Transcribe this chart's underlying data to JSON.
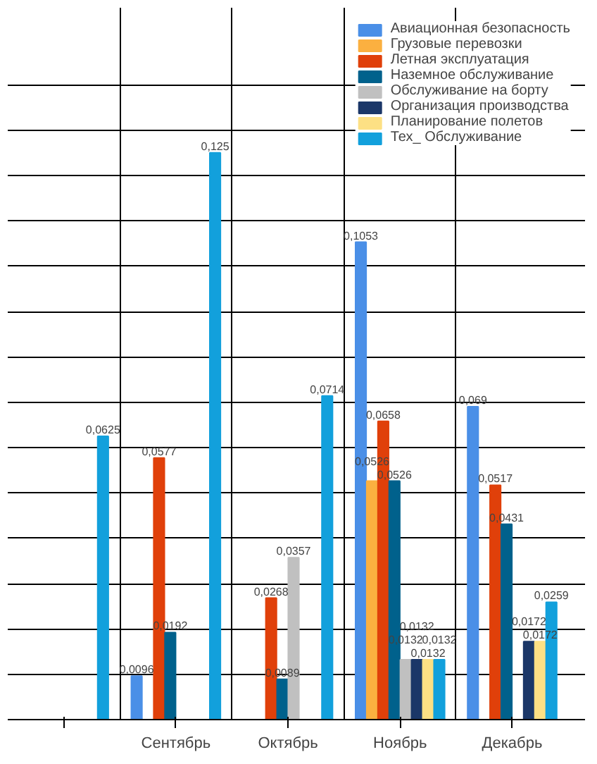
{
  "chart_data": {
    "type": "bar",
    "categories": [
      null,
      "Сентябрь",
      "Октябрь",
      "Ноябрь",
      "Декабрь"
    ],
    "series": [
      {
        "name": "Авиационная безопасность",
        "color": "#4a8fe7",
        "values": [
          null,
          0.0096,
          null,
          0.1053,
          0.069
        ],
        "value_labels": [
          null,
          "0,0096",
          null,
          "0,1053",
          "0,069"
        ]
      },
      {
        "name": "Грузовые перевозки",
        "color": "#fbb040",
        "values": [
          null,
          null,
          null,
          0.0526,
          null
        ],
        "value_labels": [
          null,
          null,
          null,
          "0,0526",
          null
        ]
      },
      {
        "name": "Летная эксплуатация",
        "color": "#e0400a",
        "values": [
          null,
          0.0577,
          0.0268,
          0.0658,
          0.0517
        ],
        "value_labels": [
          null,
          "0,0577",
          "0,0268",
          "0,0658",
          "0,0517"
        ]
      },
      {
        "name": "Наземное обслуживание",
        "color": "#00618c",
        "values": [
          null,
          0.0192,
          0.0089,
          0.0526,
          0.0431
        ],
        "value_labels": [
          null,
          "0,0192",
          "0,0089",
          "0,0526",
          "0,0431"
        ]
      },
      {
        "name": "Обслуживание на борту",
        "color": "#c0c0c0",
        "values": [
          null,
          null,
          0.0357,
          0.0132,
          null
        ],
        "value_labels": [
          null,
          null,
          "0,0357",
          "0,0132",
          null
        ]
      },
      {
        "name": "Организация производства",
        "color": "#1b3768",
        "values": [
          null,
          null,
          null,
          0.0132,
          0.0172
        ],
        "value_labels": [
          null,
          null,
          null,
          "0,0132",
          "0,0172"
        ]
      },
      {
        "name": "Планирование полетов",
        "color": "#fde084",
        "values": [
          null,
          null,
          null,
          0.0132,
          0.0172
        ],
        "value_labels": [
          null,
          null,
          null,
          "0,0132",
          "0,0172"
        ]
      },
      {
        "name": "Тех_ Обслуживание",
        "color": "#12a0dc",
        "values": [
          0.0625,
          0.125,
          0.0714,
          0.0132,
          0.0259
        ],
        "value_labels": [
          "0,0625",
          "0,125",
          "0,0714",
          "0,0132",
          "0,0259"
        ]
      }
    ],
    "ylim": [
      0,
      0.157
    ],
    "yticks": [
      {
        "value": 0,
        "label": null
      },
      {
        "value": 0.01,
        "label": null
      },
      {
        "value": 0.02,
        "label": null
      },
      {
        "value": 0.03,
        "label": null
      },
      {
        "value": 0.04,
        "label": null
      },
      {
        "value": 0.05,
        "label": null
      },
      {
        "value": 0.06,
        "label": null
      },
      {
        "value": 0.07,
        "label": null
      },
      {
        "value": 0.08,
        "label": null
      },
      {
        "value": 0.09,
        "label": null
      },
      {
        "value": 0.1,
        "label": null
      },
      {
        "value": 0.11,
        "label": null
      },
      {
        "value": 0.12,
        "label": null
      },
      {
        "value": 0.13,
        "label": null
      },
      {
        "value": 0.14,
        "label": null
      }
    ],
    "tick_labels": "x",
    "grid": true,
    "legend": "top right"
  }
}
